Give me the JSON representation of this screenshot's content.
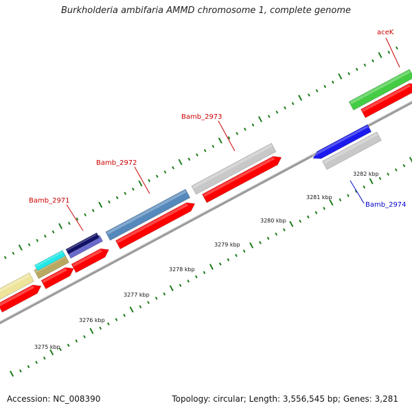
{
  "title": "Burkholderia ambifaria AMMD chromosome 1, complete genome",
  "footer": {
    "accession": "Accession: NC_008390",
    "summary": "Topology: circular; Length: 3,556,545 bp; Genes: 3,281"
  },
  "colors": {
    "backbone": "#888888",
    "tick": "#1a7a1a",
    "cds": "#ff0000",
    "label_forward": "#cc0000",
    "label_reverse": "#0000cc"
  },
  "scale_labels": [
    "3275 kbp",
    "3276 kbp",
    "3277 kbp",
    "3278 kbp",
    "3279 kbp",
    "3280 kbp",
    "3281 kbp",
    "3282 kbp"
  ],
  "gene_labels": [
    {
      "name": "Bamb_2971",
      "strand": "forward"
    },
    {
      "name": "Bamb_2972",
      "strand": "forward"
    },
    {
      "name": "Bamb_2973",
      "strand": "forward"
    },
    {
      "name": "aceK",
      "strand": "forward"
    },
    {
      "name": "Bamb_2974",
      "strand": "reverse"
    }
  ]
}
